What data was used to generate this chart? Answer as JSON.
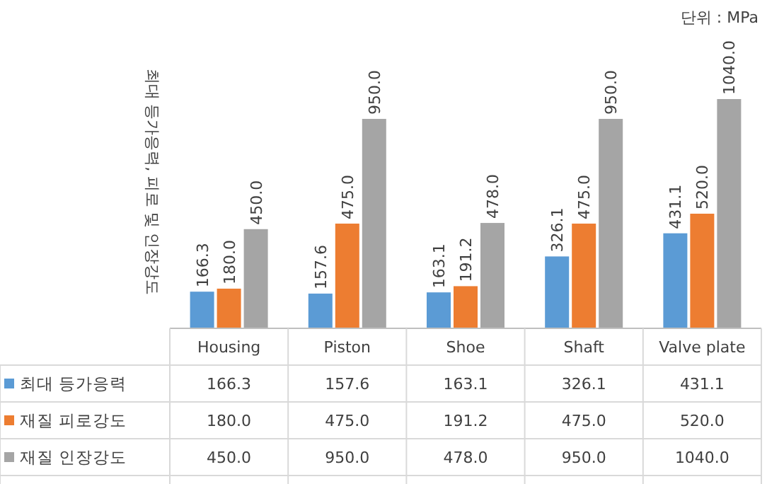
{
  "chart_data": {
    "type": "bar",
    "ylabel": "최대 등가응력, 피로 및 인장강도",
    "annotations": [
      "단위 : MPa"
    ],
    "categories": [
      "Housing",
      "Piston",
      "Shoe",
      "Shaft",
      "Valve plate"
    ],
    "series": [
      {
        "name": "최대 등가응력",
        "color": "#5b9bd5",
        "values": [
          166.3,
          157.6,
          163.1,
          326.1,
          431.1
        ],
        "value_labels": [
          "166.3",
          "157.6",
          "163.1",
          "326.1",
          "431.1"
        ]
      },
      {
        "name": "재질 피로강도",
        "color": "#ed7d31",
        "values": [
          180.0,
          475.0,
          191.2,
          475.0,
          520.0
        ],
        "value_labels": [
          "180.0",
          "475.0",
          "191.2",
          "475.0",
          "520.0"
        ]
      },
      {
        "name": "재질 인장강도",
        "color": "#a5a5a5",
        "values": [
          450.0,
          950.0,
          478.0,
          950.0,
          1040.0
        ],
        "value_labels": [
          "450.0",
          "950.0",
          "478.0",
          "950.0",
          "1040.0"
        ]
      }
    ],
    "legend": "bottom left"
  }
}
